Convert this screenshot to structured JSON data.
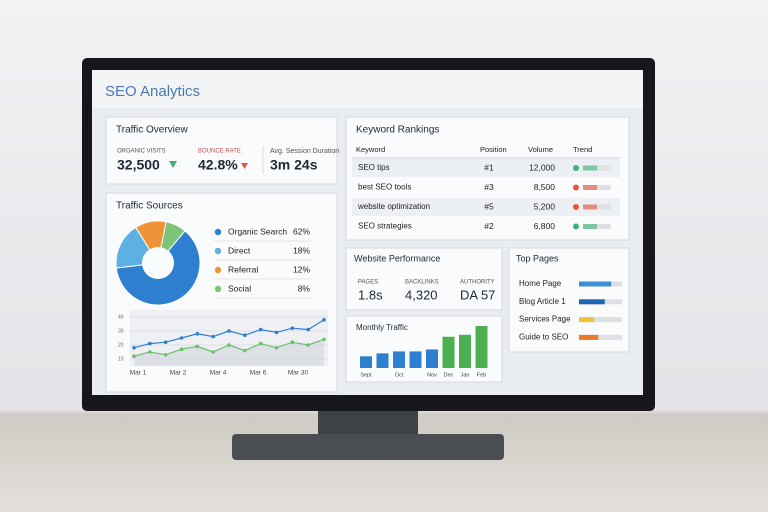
{
  "header": {
    "title": "SEO Analytics"
  },
  "traffic_overview": {
    "title": "Traffic Overview",
    "metrics": [
      {
        "label": "ORGANIC VISITS",
        "value": "32,500"
      },
      {
        "label": "BOUNCE RATE",
        "value": "42.8%"
      },
      {
        "label": "Avg. Session Duration",
        "value": "3m 24s"
      }
    ]
  },
  "traffic_sources": {
    "title": "Traffic Sources",
    "type": "pie",
    "categories": [
      "Organic Search",
      "Direct",
      "Referral",
      "Social"
    ],
    "values": [
      62,
      18,
      12,
      8
    ],
    "value_labels": [
      "62%",
      "18%",
      "12%",
      "8%"
    ],
    "colors": [
      "#2f7fd0",
      "#5cb0e2",
      "#f0923a",
      "#7cc576"
    ]
  },
  "traffic_trend": {
    "type": "line",
    "xtick_labels": [
      "Mar 1",
      "Mar 2",
      "Mar 4",
      "Mar 6",
      "Mar 30"
    ],
    "ylim": [
      5,
      45
    ],
    "yticks": [
      10,
      20,
      30,
      40
    ],
    "series": [
      {
        "color": "#2f7fd0",
        "values": [
          18,
          21,
          22,
          25,
          28,
          26,
          30,
          27,
          31,
          29,
          32,
          31,
          38
        ]
      },
      {
        "color": "#6cbf6a",
        "values": [
          12,
          15,
          13,
          17,
          19,
          15,
          20,
          16,
          21,
          18,
          22,
          20,
          24
        ]
      }
    ]
  },
  "keyword_rankings": {
    "title": "Keyword Rankings",
    "columns": [
      "Keyword",
      "Position",
      "Volume",
      "Trend"
    ],
    "rows": [
      [
        "SEO tips",
        "#1",
        "12,000"
      ],
      [
        "best SEO tools",
        "#3",
        "8,500"
      ],
      [
        "website optimization",
        "#5",
        "5,200"
      ],
      [
        "SEO strategies",
        "#2",
        "6,800"
      ]
    ],
    "trend_colors": [
      "#3cb371",
      "#e8553e",
      "#e8553e",
      "#3cb371"
    ]
  },
  "website_performance": {
    "title": "Website Performance",
    "metrics": [
      {
        "label": "PAGES",
        "value": "1.8s"
      },
      {
        "label": "BACKLINKS",
        "value": "4,320"
      },
      {
        "label": "AUTHORITY",
        "value": "DA 57"
      }
    ]
  },
  "monthly_traffic": {
    "title": "Monthly Traffic",
    "type": "bar",
    "categories": [
      "Sept",
      null,
      "Oct",
      null,
      "Nov",
      "Dec",
      "Jan",
      "Feb"
    ],
    "values": [
      12,
      15,
      17,
      17,
      19,
      32,
      34,
      43
    ],
    "colors": [
      "#2f7fd0",
      "#2f7fd0",
      "#2f7fd0",
      "#2f7fd0",
      "#2f7fd0",
      "#4cb050",
      "#4cb050",
      "#4cb050"
    ]
  },
  "top_pages": {
    "title": "Top Pages",
    "items": [
      "Home Page",
      "Blog Article 1",
      "Services Page",
      "Guide to SEO"
    ],
    "values": [
      75,
      60,
      35,
      45
    ],
    "colors": [
      "#3a8fd6",
      "#1f66b0",
      "#f2c230",
      "#ea7a2a"
    ]
  }
}
